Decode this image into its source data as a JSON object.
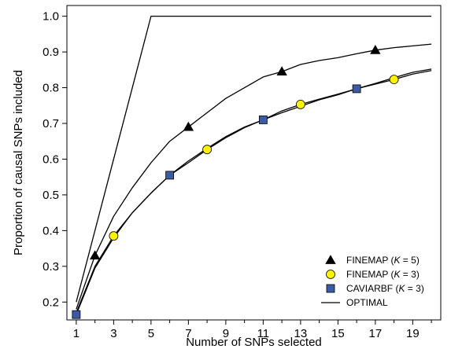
{
  "chart_data": {
    "type": "line",
    "xlabel": "Number of SNPs selected",
    "ylabel": "Proportion of causal SNPs included",
    "xlim": [
      0.5,
      20.5
    ],
    "ylim": [
      0.15,
      1.03
    ],
    "xticks": [
      1,
      3,
      5,
      7,
      9,
      11,
      13,
      15,
      17,
      19
    ],
    "xticks_unlabeled": [
      2,
      4,
      6,
      8,
      10,
      12,
      14,
      16,
      18,
      20
    ],
    "yticks": [
      0.2,
      0.3,
      0.4,
      0.5,
      0.6,
      0.7,
      0.8,
      0.9,
      1.0
    ],
    "ytick_labels": [
      "0.2",
      "0.3",
      "0.4",
      "0.5",
      "0.6",
      "0.7",
      "0.8",
      "0.9",
      "1.0"
    ],
    "x": [
      1,
      2,
      3,
      4,
      5,
      6,
      7,
      8,
      9,
      10,
      11,
      12,
      13,
      14,
      15,
      16,
      17,
      18,
      19,
      20
    ],
    "series": [
      {
        "name": "FINEMAP (K = 5)",
        "marker": "triangle",
        "marker_color": "#000000",
        "marker_x": [
          2,
          7,
          12,
          17
        ],
        "values": [
          0.18,
          0.33,
          0.44,
          0.52,
          0.59,
          0.65,
          0.69,
          0.73,
          0.77,
          0.8,
          0.83,
          0.845,
          0.865,
          0.876,
          0.884,
          0.895,
          0.905,
          0.912,
          0.917,
          0.922
        ]
      },
      {
        "name": "FINEMAP (K = 3)",
        "marker": "circle",
        "marker_color": "#FFF200",
        "marker_x": [
          3,
          8,
          13,
          18
        ],
        "values": [
          0.17,
          0.3,
          0.385,
          0.45,
          0.505,
          0.555,
          0.59,
          0.627,
          0.66,
          0.688,
          0.71,
          0.735,
          0.753,
          0.768,
          0.782,
          0.797,
          0.81,
          0.823,
          0.838,
          0.848
        ]
      },
      {
        "name": "CAVIARBF (K = 3)",
        "marker": "square",
        "marker_color": "#3B5BA5",
        "marker_x": [
          1,
          6,
          11,
          16
        ],
        "values": [
          0.165,
          0.295,
          0.38,
          0.45,
          0.505,
          0.555,
          0.595,
          0.63,
          0.663,
          0.69,
          0.71,
          0.73,
          0.748,
          0.766,
          0.78,
          0.797,
          0.812,
          0.828,
          0.843,
          0.852
        ]
      },
      {
        "name": "OPTIMAL",
        "marker": "none",
        "values": [
          0.2,
          0.4,
          0.6,
          0.8,
          1.0,
          1.0,
          1.0,
          1.0,
          1.0,
          1.0,
          1.0,
          1.0,
          1.0,
          1.0,
          1.0,
          1.0,
          1.0,
          1.0,
          1.0,
          1.0
        ]
      }
    ],
    "legend": {
      "placement": "bottom-right",
      "entries": [
        {
          "prefix": "FINEMAP (",
          "italic": "K",
          "suffix": " = 5)"
        },
        {
          "prefix": "FINEMAP (",
          "italic": "K",
          "suffix": " = 3)"
        },
        {
          "prefix": "CAVIARBF (",
          "italic": "K",
          "suffix": " = 3)"
        },
        {
          "prefix": "OPTIMAL",
          "italic": "",
          "suffix": ""
        }
      ]
    },
    "grid": false
  }
}
